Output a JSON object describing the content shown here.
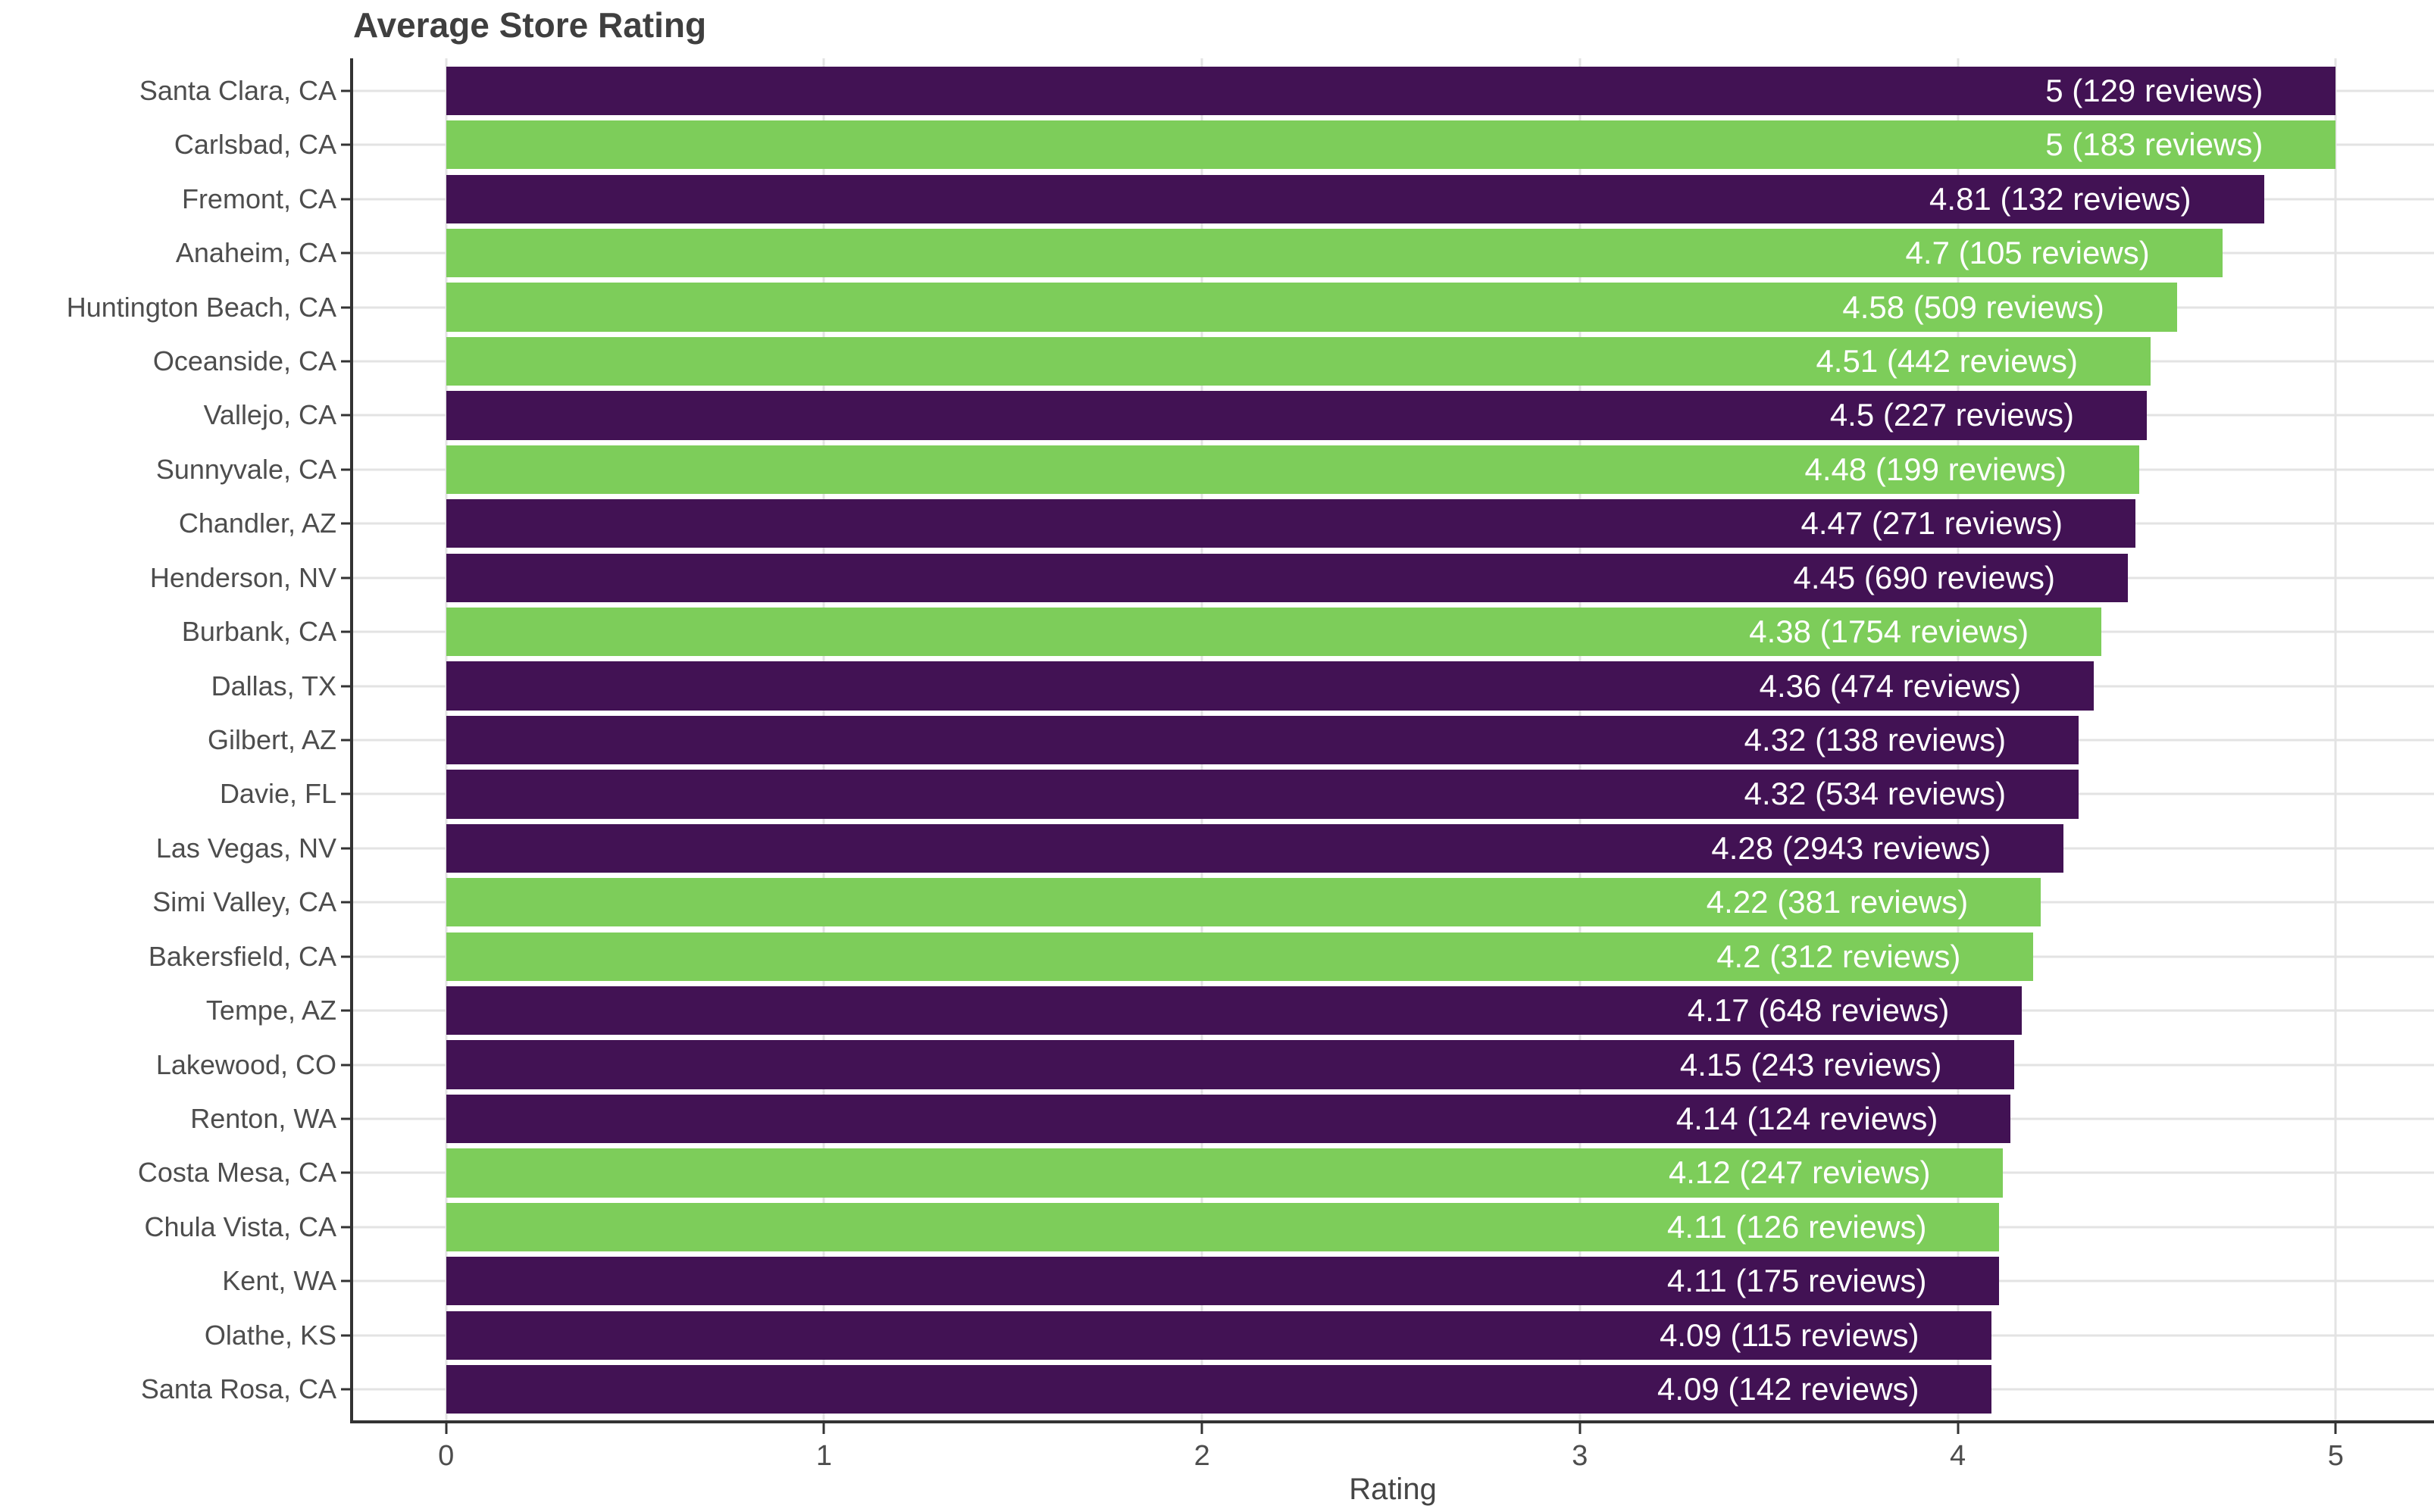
{
  "colors": {
    "purple": "#421254",
    "green": "#7dcd5a",
    "axis": "#333333",
    "axis_text": "#4d4d4d",
    "grid": "#e3e3e3",
    "bar_label": "#ffffff",
    "title_text": "#3f3f3f"
  },
  "chart_data": {
    "type": "bar",
    "orientation": "horizontal",
    "title": "Average Store Rating",
    "xlabel": "Rating",
    "ylabel": "",
    "xlim": [
      0,
      5
    ],
    "x_ticks": [
      0,
      1,
      2,
      3,
      4,
      5
    ],
    "grid": true,
    "legend": "none",
    "layout": {
      "x_expand_low": 0.25,
      "x_expand_high": 0.26,
      "y_expand": 0.6,
      "bar_width": 0.9
    },
    "rows": [
      {
        "city": "Santa Clara, CA",
        "rating": 5,
        "reviews": 129,
        "label": "5 (129 reviews)",
        "color": "purple"
      },
      {
        "city": "Carlsbad, CA",
        "rating": 5,
        "reviews": 183,
        "label": "5 (183 reviews)",
        "color": "green"
      },
      {
        "city": "Fremont, CA",
        "rating": 4.81,
        "reviews": 132,
        "label": "4.81 (132 reviews)",
        "color": "purple"
      },
      {
        "city": "Anaheim, CA",
        "rating": 4.7,
        "reviews": 105,
        "label": "4.7 (105 reviews)",
        "color": "green"
      },
      {
        "city": "Huntington Beach, CA",
        "rating": 4.58,
        "reviews": 509,
        "label": "4.58 (509 reviews)",
        "color": "green"
      },
      {
        "city": "Oceanside, CA",
        "rating": 4.51,
        "reviews": 442,
        "label": "4.51 (442 reviews)",
        "color": "green"
      },
      {
        "city": "Vallejo, CA",
        "rating": 4.5,
        "reviews": 227,
        "label": "4.5 (227 reviews)",
        "color": "purple"
      },
      {
        "city": "Sunnyvale, CA",
        "rating": 4.48,
        "reviews": 199,
        "label": "4.48 (199 reviews)",
        "color": "green"
      },
      {
        "city": "Chandler, AZ",
        "rating": 4.47,
        "reviews": 271,
        "label": "4.47 (271 reviews)",
        "color": "purple"
      },
      {
        "city": "Henderson, NV",
        "rating": 4.45,
        "reviews": 690,
        "label": "4.45 (690 reviews)",
        "color": "purple"
      },
      {
        "city": "Burbank, CA",
        "rating": 4.38,
        "reviews": 1754,
        "label": "4.38 (1754 reviews)",
        "color": "green"
      },
      {
        "city": "Dallas, TX",
        "rating": 4.36,
        "reviews": 474,
        "label": "4.36 (474 reviews)",
        "color": "purple"
      },
      {
        "city": "Gilbert, AZ",
        "rating": 4.32,
        "reviews": 138,
        "label": "4.32 (138 reviews)",
        "color": "purple"
      },
      {
        "city": "Davie, FL",
        "rating": 4.32,
        "reviews": 534,
        "label": "4.32 (534 reviews)",
        "color": "purple"
      },
      {
        "city": "Las Vegas, NV",
        "rating": 4.28,
        "reviews": 2943,
        "label": "4.28 (2943 reviews)",
        "color": "purple"
      },
      {
        "city": "Simi Valley, CA",
        "rating": 4.22,
        "reviews": 381,
        "label": "4.22 (381 reviews)",
        "color": "green"
      },
      {
        "city": "Bakersfield, CA",
        "rating": 4.2,
        "reviews": 312,
        "label": "4.2 (312 reviews)",
        "color": "green"
      },
      {
        "city": "Tempe, AZ",
        "rating": 4.17,
        "reviews": 648,
        "label": "4.17 (648 reviews)",
        "color": "purple"
      },
      {
        "city": "Lakewood, CO",
        "rating": 4.15,
        "reviews": 243,
        "label": "4.15 (243 reviews)",
        "color": "purple"
      },
      {
        "city": "Renton, WA",
        "rating": 4.14,
        "reviews": 124,
        "label": "4.14 (124 reviews)",
        "color": "purple"
      },
      {
        "city": "Costa Mesa, CA",
        "rating": 4.12,
        "reviews": 247,
        "label": "4.12 (247 reviews)",
        "color": "green"
      },
      {
        "city": "Chula Vista, CA",
        "rating": 4.11,
        "reviews": 126,
        "label": "4.11 (126 reviews)",
        "color": "green"
      },
      {
        "city": "Kent, WA",
        "rating": 4.11,
        "reviews": 175,
        "label": "4.11 (175 reviews)",
        "color": "purple"
      },
      {
        "city": "Olathe, KS",
        "rating": 4.09,
        "reviews": 115,
        "label": "4.09 (115 reviews)",
        "color": "purple"
      },
      {
        "city": "Santa Rosa, CA",
        "rating": 4.09,
        "reviews": 142,
        "label": "4.09 (142 reviews)",
        "color": "purple"
      }
    ]
  }
}
